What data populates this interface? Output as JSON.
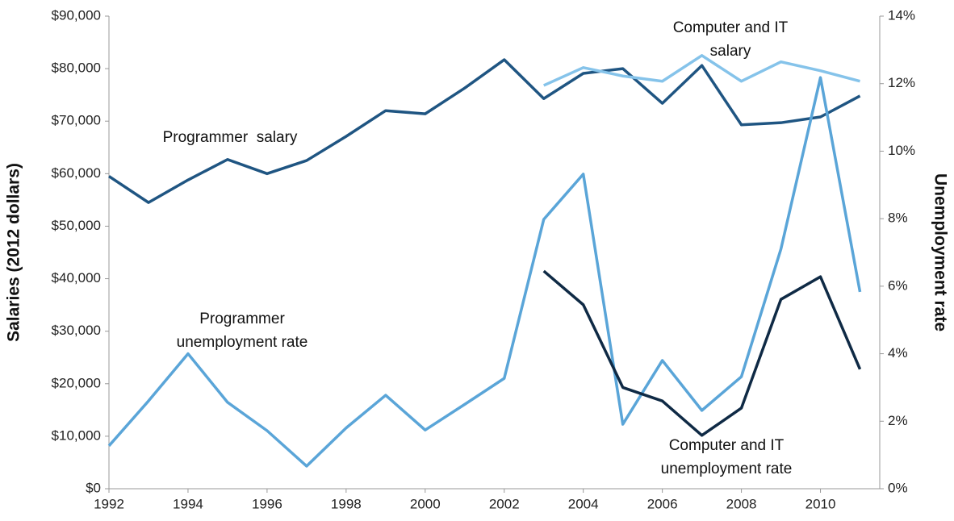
{
  "chart_data": {
    "type": "line",
    "x": [
      1992,
      1993,
      1994,
      1995,
      1996,
      1997,
      1998,
      1999,
      2000,
      2001,
      2002,
      2003,
      2004,
      2005,
      2006,
      2007,
      2008,
      2009,
      2010,
      2011
    ],
    "xlim": [
      1992,
      2011.5
    ],
    "xticks": [
      1992,
      1994,
      1996,
      1998,
      2000,
      2002,
      2004,
      2006,
      2008,
      2010
    ],
    "ylabel": "Salaries (2012 dollars)",
    "y2label": "Unemployment rate",
    "ylim": [
      0,
      90000
    ],
    "yticks": [
      {
        "value": 0,
        "label": "$0"
      },
      {
        "value": 10000,
        "label": "$10,000"
      },
      {
        "value": 20000,
        "label": "$20,000"
      },
      {
        "value": 30000,
        "label": "$30,000"
      },
      {
        "value": 40000,
        "label": "$40,000"
      },
      {
        "value": 50000,
        "label": "$50,000"
      },
      {
        "value": 60000,
        "label": "$60,000"
      },
      {
        "value": 70000,
        "label": "$70,000"
      },
      {
        "value": 80000,
        "label": "$80,000"
      },
      {
        "value": 90000,
        "label": "$90,000"
      }
    ],
    "y2lim": [
      0,
      14
    ],
    "y2ticks": [
      {
        "value": 0,
        "label": "0%"
      },
      {
        "value": 2,
        "label": "2%"
      },
      {
        "value": 4,
        "label": "4%"
      },
      {
        "value": 6,
        "label": "6%"
      },
      {
        "value": 8,
        "label": "8%"
      },
      {
        "value": 10,
        "label": "10%"
      },
      {
        "value": 12,
        "label": "12%"
      },
      {
        "value": 14,
        "label": "14%"
      }
    ],
    "series": [
      {
        "color": "#1f5582",
        "values": [
          59500,
          54500,
          58800,
          62700,
          60000,
          62500,
          67100,
          72000,
          71400,
          76300,
          81700,
          74300,
          79100,
          80000,
          73400,
          80600,
          69300,
          69700,
          70800,
          74800
        ]
      },
      {
        "color": "#85c3ea",
        "values": [
          null,
          null,
          null,
          null,
          null,
          null,
          null,
          null,
          null,
          null,
          null,
          76800,
          80200,
          78600,
          77600,
          82500,
          77600,
          81300,
          79600,
          77600
        ]
      },
      {
        "color": "#5aa5d8",
        "axis": "y2",
        "values": [
          1.27,
          2.6,
          4.0,
          2.56,
          1.72,
          0.67,
          1.8,
          2.77,
          1.74,
          2.5,
          3.27,
          7.98,
          9.32,
          1.91,
          3.8,
          2.32,
          3.32,
          7.1,
          12.18,
          5.83
        ]
      },
      {
        "color": "#0f2a45",
        "axis": "y2",
        "values": [
          null,
          null,
          null,
          null,
          null,
          null,
          null,
          null,
          null,
          null,
          null,
          6.45,
          5.45,
          3.0,
          2.6,
          1.58,
          2.39,
          5.61,
          6.28,
          3.54
        ]
      }
    ],
    "annotations": [
      {
        "lines": [
          "Programmer  salary"
        ]
      },
      {
        "lines": [
          "Programmer",
          "unemployment rate"
        ]
      },
      {
        "lines": [
          "Computer and IT",
          "salary"
        ]
      },
      {
        "lines": [
          "Computer and IT",
          "unemployment rate"
        ]
      }
    ]
  }
}
